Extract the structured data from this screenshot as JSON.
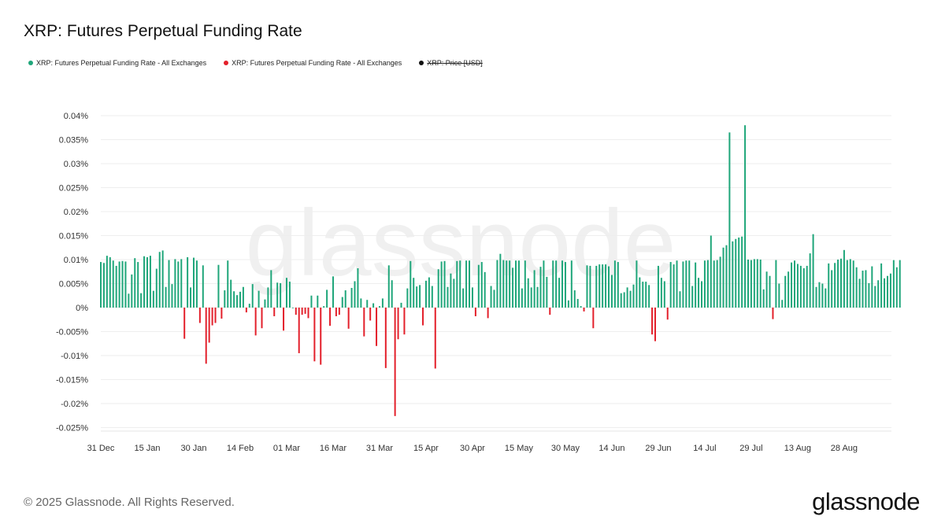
{
  "chart_data": {
    "type": "bar",
    "title": "XRP: Futures Perpetual Funding Rate",
    "legend": [
      {
        "label": "XRP: Futures Perpetual Funding Rate - All Exchanges",
        "color": "#1fa67a"
      },
      {
        "label": "XRP: Futures Perpetual Funding Rate - All Exchanges",
        "color": "#e3202b"
      },
      {
        "label": "XRP: Price [USD]",
        "color": "#111111",
        "hidden": true
      }
    ],
    "legend_placement": "top-left",
    "positive_color": "#1fa67a",
    "negative_color": "#e3202b",
    "ylim": [
      -0.025,
      0.04
    ],
    "y_unit": "%",
    "grid": true,
    "yticks": [
      "0.04%",
      "0.035%",
      "0.03%",
      "0.025%",
      "0.02%",
      "0.015%",
      "0.01%",
      "0.005%",
      "0%",
      "-0.005%",
      "-0.01%",
      "-0.015%",
      "-0.02%",
      "-0.025%"
    ],
    "ytick_values": [
      0.04,
      0.035,
      0.03,
      0.025,
      0.02,
      0.015,
      0.01,
      0.005,
      0,
      -0.005,
      -0.01,
      -0.015,
      -0.02,
      -0.025
    ],
    "xticks": [
      "31 Dec",
      "15 Jan",
      "30 Jan",
      "14 Feb",
      "01 Mar",
      "16 Mar",
      "31 Mar",
      "15 Apr",
      "30 Apr",
      "15 May",
      "30 May",
      "14 Jun",
      "29 Jun",
      "14 Jul",
      "29 Jul",
      "13 Aug",
      "28 Aug"
    ],
    "xtick_dates": [
      "2024-12-31",
      "2025-01-15",
      "2025-01-30",
      "2025-02-14",
      "2025-03-01",
      "2025-03-16",
      "2025-03-31",
      "2025-04-15",
      "2025-04-30",
      "2025-05-15",
      "2025-05-30",
      "2025-06-14",
      "2025-06-29",
      "2025-07-14",
      "2025-07-29",
      "2025-08-13",
      "2025-08-28"
    ],
    "series_by_month": [
      {
        "month": "2024-12",
        "first_day": 31,
        "values": [
          0.0095
        ]
      },
      {
        "month": "2025-01",
        "first_day": 1,
        "values": [
          0.0093,
          0.0108,
          0.0105,
          0.0098,
          0.0087,
          0.0096,
          0.0097,
          0.0096,
          0.0029,
          0.0069,
          0.0103,
          0.0095,
          0.003,
          0.0107,
          0.0105,
          0.0108,
          0.0035,
          0.0081,
          0.0116,
          0.0119,
          0.0043,
          0.0099,
          0.0049,
          0.0101,
          0.0096,
          0.0101,
          -0.0065,
          0.0105,
          0.0042,
          0.0104,
          0.0098
        ]
      },
      {
        "month": "2025-02",
        "first_day": 1,
        "values": [
          -0.0032,
          0.0088,
          -0.0117,
          -0.0073,
          -0.0037,
          -0.0032,
          0.0089,
          -0.0023,
          0.0036,
          0.0098,
          0.0058,
          0.0034,
          0.0026,
          0.0033,
          0.0043,
          -0.001,
          0.0008,
          0.0049,
          -0.0058,
          0.0035,
          -0.0043,
          0.0017,
          0.0042,
          0.0078,
          -0.0018,
          0.0052,
          0.0051,
          -0.0048
        ]
      },
      {
        "month": "2025-03",
        "first_day": 1,
        "values": [
          0.0062,
          0.0054,
          0,
          -0.0015,
          -0.0095,
          -0.0015,
          -0.0013,
          -0.0022,
          0.0025,
          -0.0112,
          0.0025,
          -0.0119,
          0.0003,
          0.0037,
          -0.0038,
          0.0065,
          -0.0018,
          -0.0015,
          0.0022,
          0.0036,
          -0.0044,
          0.0041,
          0.0055,
          0.0082,
          0.0019,
          -0.006,
          0.0016,
          -0.0027,
          0.0009,
          -0.008,
          0.0003
        ]
      },
      {
        "month": "2025-04",
        "first_day": 1,
        "values": [
          0.0019,
          -0.0126,
          0.0088,
          0.0057,
          -0.0226,
          -0.0066,
          0.001,
          -0.0056,
          0.004,
          0.0097,
          0.0062,
          0.0044,
          0.0047,
          -0.0037,
          0.0056,
          0.0063,
          0.0045,
          -0.0127,
          0.008,
          0.0096,
          0.0097,
          0.0043,
          0.0071,
          0.006,
          0.0097,
          0.0098,
          0.004,
          0.0098,
          0.0098,
          0.0042
        ]
      },
      {
        "month": "2025-05",
        "first_day": 1,
        "values": [
          -0.0018,
          0.0089,
          0.0095,
          0.0074,
          -0.0022,
          0.0045,
          0.0037,
          0.0099,
          0.0112,
          0.0099,
          0.0098,
          0.0098,
          0.0083,
          0.0098,
          0.0098,
          0.004,
          0.0098,
          0.0061,
          0.0042,
          0.0078,
          0.0043,
          0.0085,
          0.0098,
          0.0064,
          -0.0015,
          0.0098,
          0.0098,
          0.0062,
          0.0098,
          0.0095,
          0.0015
        ]
      },
      {
        "month": "2025-06",
        "first_day": 1,
        "values": [
          0.0098,
          0.0036,
          0.0018,
          0.0003,
          -0.0008,
          0.0088,
          0.0087,
          -0.0043,
          0.0087,
          0.009,
          0.009,
          0.009,
          0.0086,
          0.0068,
          0.0098,
          0.0095,
          0.003,
          0.0032,
          0.0042,
          0.0035,
          0.0048,
          0.0098,
          0.0063,
          0.0054,
          0.0054,
          0.0047,
          -0.0056,
          -0.007,
          0.0087,
          0.0062
        ]
      },
      {
        "month": "2025-07",
        "first_day": 1,
        "values": [
          0.0055,
          -0.0025,
          0.0095,
          0.009,
          0.0098,
          0.0034,
          0.0096,
          0.0098,
          0.0098,
          0.0045,
          0.0094,
          0.0062,
          0.0055,
          0.0098,
          0.0099,
          0.015,
          0.0098,
          0.0099,
          0.0106,
          0.0125,
          0.013,
          0.0365,
          0.0138,
          0.0143,
          0.0146,
          0.0148,
          0.038,
          0.01,
          0.0099,
          0.0101,
          0.0101
        ]
      },
      {
        "month": "2025-08",
        "first_day": 1,
        "values": [
          0.01,
          0.0038,
          0.0075,
          0.0066,
          -0.0024,
          0.0099,
          0.005,
          0.0016,
          0.0066,
          0.0075,
          0.0094,
          0.0098,
          0.0091,
          0.0087,
          0.0082,
          0.0087,
          0.0113,
          0.0153,
          0.0043,
          0.0053,
          0.005,
          0.004,
          0.0092,
          0.0078,
          0.0093,
          0.01,
          0.0102,
          0.012,
          0.0099,
          0.0101,
          0.0098
        ]
      },
      {
        "month": "2025-09",
        "first_day": 1,
        "values": [
          0.0084,
          0.006,
          0.0077,
          0.0078,
          0.0051,
          0.0086,
          0.0045,
          0.0057,
          0.0092,
          0.0061,
          0.0066,
          0.0071,
          0.0099,
          0.0084,
          0.0099
        ]
      }
    ]
  },
  "watermark": "glassnode",
  "footer": {
    "copyright": "© 2025 Glassnode. All Rights Reserved.",
    "logo": "glassnode"
  }
}
